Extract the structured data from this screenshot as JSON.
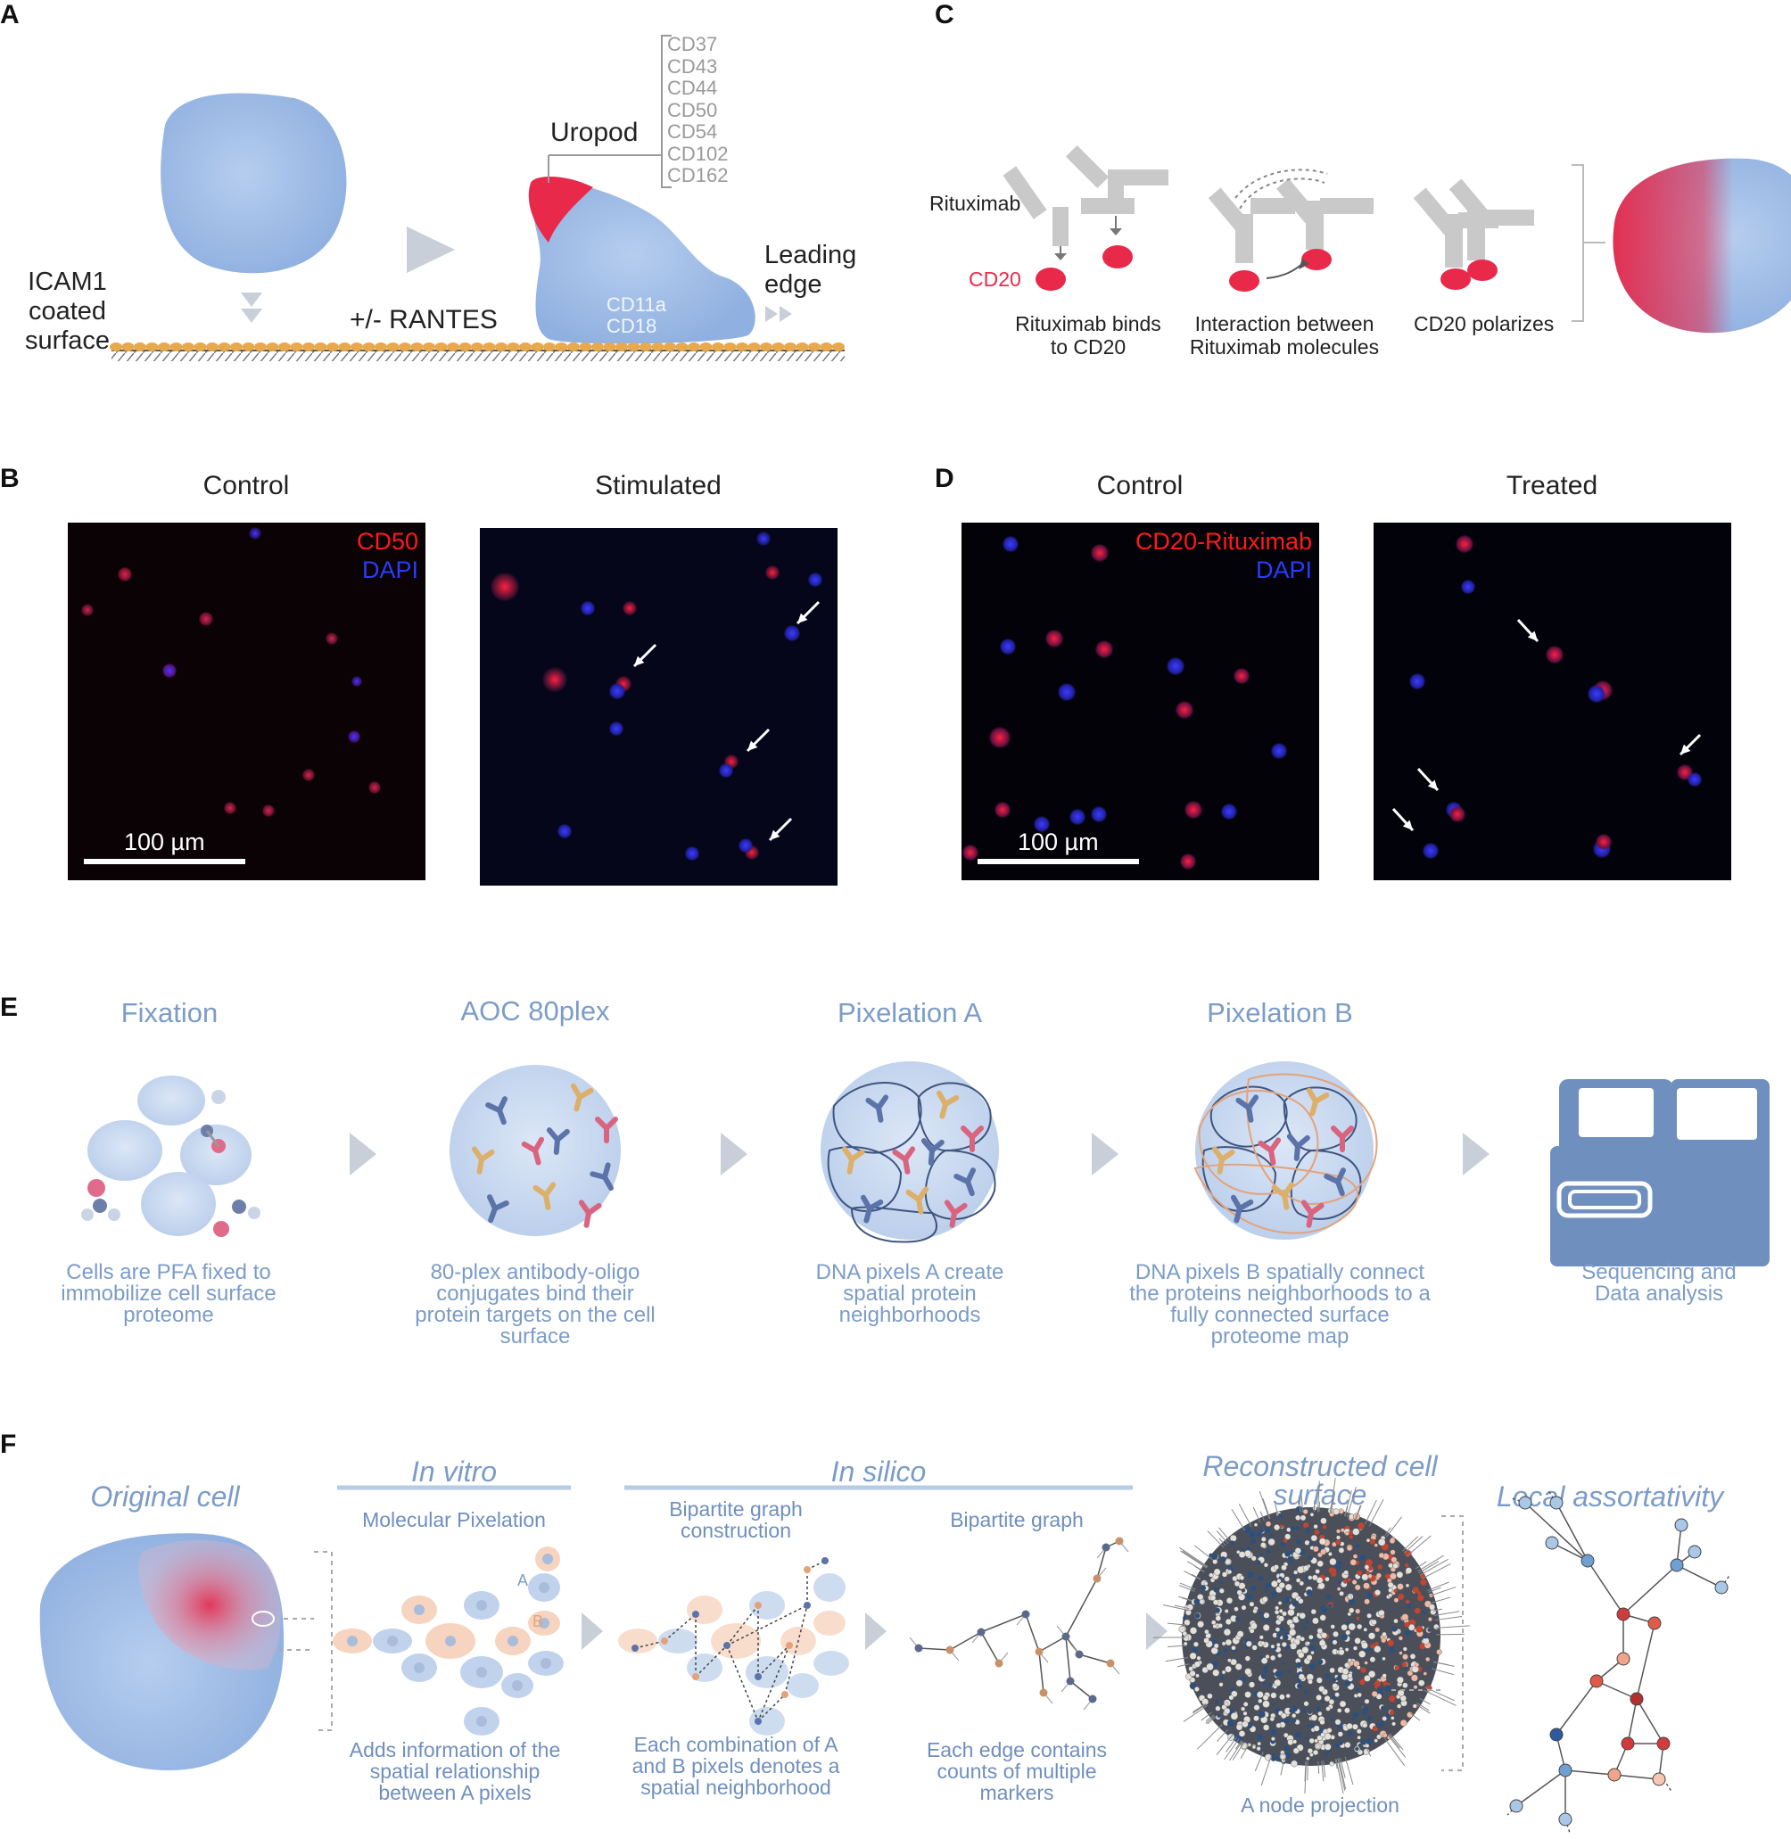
{
  "panels": {
    "a": "A",
    "b": "B",
    "c": "C",
    "d": "D",
    "e": "E",
    "f": "F"
  },
  "panel_a": {
    "surface_label": [
      "ICAM1",
      "coated",
      "surface"
    ],
    "rantes": "+/- RANTES",
    "uropod": "Uropod",
    "markers": [
      "CD37",
      "CD43",
      "CD44",
      "CD50",
      "CD54",
      "CD102",
      "CD162"
    ],
    "leading_edge": [
      "Leading",
      "edge"
    ],
    "cell_markers": [
      "CD11a",
      "CD18"
    ]
  },
  "panel_c": {
    "rituximab": "Rituximab",
    "cd20": "CD20",
    "step1": [
      "Rituximab binds",
      "to CD20"
    ],
    "step2": [
      "Interaction between",
      "Rituximab molecules"
    ],
    "step3": "CD20 polarizes"
  },
  "panel_b": {
    "control": "Control",
    "stimulated": "Stimulated",
    "legend_red": "CD50",
    "legend_blue": "DAPI",
    "scale": "100 µm"
  },
  "panel_d": {
    "control": "Control",
    "treated": "Treated",
    "legend_red": "CD20-Rituximab",
    "legend_blue": "DAPI",
    "scale": "100 µm"
  },
  "panel_e": {
    "steps": [
      {
        "title": "Fixation",
        "caption": "Cells are PFA fixed to immobilize cell surface proteome"
      },
      {
        "title": "AOC 80plex",
        "caption": "80-plex antibody-oligo conjugates bind their protein targets on the cell surface"
      },
      {
        "title": "Pixelation A",
        "caption": "DNA pixels A create spatial protein neighborhoods"
      },
      {
        "title": "Pixelation B",
        "caption": "DNA pixels B spatially connect the proteins neighborhoods to a fully connected surface proteome map"
      },
      {
        "title": "",
        "caption": "Sequencing and Data analysis"
      }
    ]
  },
  "panel_f": {
    "original_cell": "Original cell",
    "in_vitro": "In vitro",
    "in_silico": "In silico",
    "molecular_pixelation": "Molecular Pixelation",
    "bipartite_construction": "Bipartite graph construction",
    "bipartite_graph": "Bipartite graph",
    "reconstructed": "Reconstructed cell surface",
    "local_assortativity": "Local assortativity",
    "pixel_a": "A",
    "pixel_b": "B",
    "cap1": "Adds information of the spatial relationship between A pixels",
    "cap2": "Each combination of A and B pixels denotes a spatial neighborhood",
    "cap3": "Each edge contains counts of multiple markers",
    "node_projection": "A node projection"
  },
  "colors": {
    "cell_blue": "#a9c3e8",
    "uropod_red": "#e8294a",
    "accent_blue": "#7b9cc8",
    "antibody_grey": "#c9c9c9"
  }
}
